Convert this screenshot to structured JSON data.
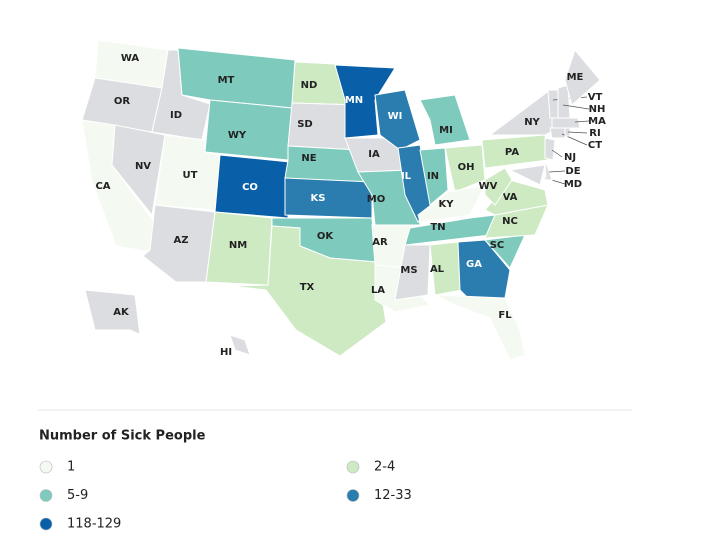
{
  "legend": {
    "title": "Number of Sick People",
    "bins": [
      {
        "label": "1",
        "color": "#f4faf1"
      },
      {
        "label": "2-4",
        "color": "#cdeac3"
      },
      {
        "label": "5-9",
        "color": "#7ecbbd"
      },
      {
        "label": "12-33",
        "color": "#2b7db0"
      },
      {
        "label": "118-129",
        "color": "#0a60a8"
      }
    ]
  },
  "missing_color": "#dcdde1",
  "states": [
    {
      "abbr": "WA",
      "bin": 0
    },
    {
      "abbr": "OR",
      "bin": null
    },
    {
      "abbr": "CA",
      "bin": 0
    },
    {
      "abbr": "NV",
      "bin": null
    },
    {
      "abbr": "ID",
      "bin": null
    },
    {
      "abbr": "MT",
      "bin": 2
    },
    {
      "abbr": "WY",
      "bin": 2
    },
    {
      "abbr": "UT",
      "bin": 0
    },
    {
      "abbr": "AZ",
      "bin": null
    },
    {
      "abbr": "CO",
      "bin": 4
    },
    {
      "abbr": "NM",
      "bin": 1
    },
    {
      "abbr": "ND",
      "bin": 1
    },
    {
      "abbr": "SD",
      "bin": null
    },
    {
      "abbr": "NE",
      "bin": 2
    },
    {
      "abbr": "KS",
      "bin": 3
    },
    {
      "abbr": "OK",
      "bin": 2
    },
    {
      "abbr": "TX",
      "bin": 1
    },
    {
      "abbr": "MN",
      "bin": 4
    },
    {
      "abbr": "IA",
      "bin": null
    },
    {
      "abbr": "MO",
      "bin": 2
    },
    {
      "abbr": "AR",
      "bin": 0
    },
    {
      "abbr": "LA",
      "bin": 0
    },
    {
      "abbr": "WI",
      "bin": 3
    },
    {
      "abbr": "IL",
      "bin": 3
    },
    {
      "abbr": "MI",
      "bin": 2
    },
    {
      "abbr": "IN",
      "bin": 2
    },
    {
      "abbr": "OH",
      "bin": 1
    },
    {
      "abbr": "KY",
      "bin": 0
    },
    {
      "abbr": "TN",
      "bin": 2
    },
    {
      "abbr": "MS",
      "bin": null
    },
    {
      "abbr": "AL",
      "bin": 1
    },
    {
      "abbr": "GA",
      "bin": 3
    },
    {
      "abbr": "FL",
      "bin": 0
    },
    {
      "abbr": "SC",
      "bin": 2
    },
    {
      "abbr": "NC",
      "bin": 1
    },
    {
      "abbr": "VA",
      "bin": 1
    },
    {
      "abbr": "WV",
      "bin": 1
    },
    {
      "abbr": "PA",
      "bin": 1
    },
    {
      "abbr": "NY",
      "bin": null
    },
    {
      "abbr": "MD",
      "bin": null
    },
    {
      "abbr": "DE",
      "bin": null
    },
    {
      "abbr": "NJ",
      "bin": null
    },
    {
      "abbr": "CT",
      "bin": null
    },
    {
      "abbr": "RI",
      "bin": null
    },
    {
      "abbr": "MA",
      "bin": null
    },
    {
      "abbr": "VT",
      "bin": null
    },
    {
      "abbr": "NH",
      "bin": null
    },
    {
      "abbr": "ME",
      "bin": null
    },
    {
      "abbr": "AK",
      "bin": null
    },
    {
      "abbr": "HI",
      "bin": null
    }
  ]
}
